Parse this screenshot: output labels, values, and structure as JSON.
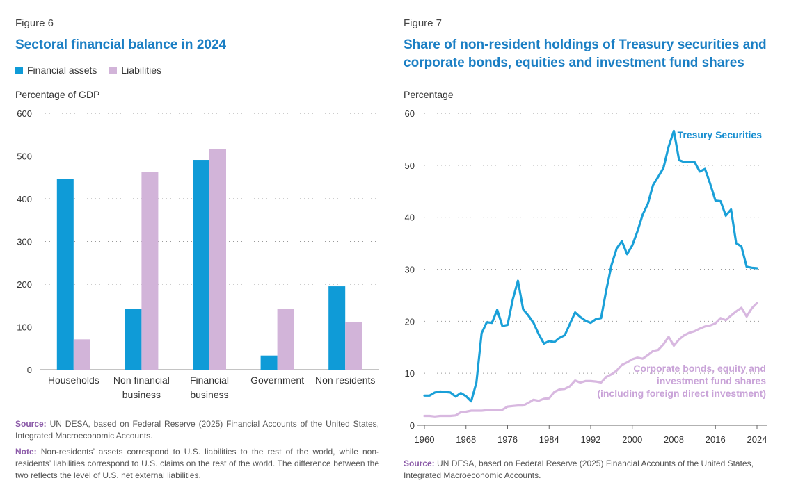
{
  "left": {
    "figure_label": "Figure 6",
    "title": "Sectoral financial balance in 2024",
    "unit_label": "Percentage of GDP",
    "source_label": "Source:",
    "source_text": "UN DESA, based on Federal Reserve (2025) Financial Accounts of the United States, Integrated Macroeconomic Accounts.",
    "note_label": "Note:",
    "note_text": "Non-residents’ assets correspond to U.S. liabilities to the rest of the world, while non-residents’ liabilities correspond to U.S. claims on the rest of the world. The difference between the two reflects the level of U.S. net external liabilities."
  },
  "right": {
    "figure_label": "Figure 7",
    "title_line1": "Share of non-resident holdings of Treasury securities and",
    "title_line2": "corporate bonds, equities and investment fund shares",
    "unit_label": "Percentage",
    "source_label": "Source:",
    "source_text": "UN DESA, based on Federal Reserve (2025) Financial Accounts of the United States, Integrated Macroeconomic Accounts."
  },
  "colors": {
    "assets": "#0f9bd7",
    "liabilities": "#d2b4d9",
    "treasury": "#1aa0d8",
    "corporate": "#d8b8e0",
    "treasury_label": "#1a8fd0",
    "corporate_label": "#c9a3d8"
  },
  "chart_data": [
    {
      "type": "bar",
      "title": "Sectoral financial balance in 2024",
      "ylabel": "Percentage of GDP",
      "ylim": [
        0,
        600
      ],
      "yticks": [
        "0",
        "100",
        "200",
        "300",
        "400",
        "500",
        "600"
      ],
      "categories": [
        [
          "Households"
        ],
        [
          "Non financial",
          "business"
        ],
        [
          "Financial",
          "business"
        ],
        [
          "Government"
        ],
        [
          "Non residents"
        ]
      ],
      "series": [
        {
          "name": "Financial assets",
          "values": [
            446,
            143,
            491,
            33,
            195
          ]
        },
        {
          "name": "Liabilities",
          "values": [
            71,
            463,
            516,
            143,
            111
          ]
        }
      ],
      "legend": "top-left"
    },
    {
      "type": "line",
      "title": "Share of non-resident holdings of Treasury securities and corporate bonds, equities and investment fund shares",
      "ylabel": "Percentage",
      "ylim": [
        0,
        60
      ],
      "xlim": [
        1960,
        2024
      ],
      "yticks": [
        "0",
        "10",
        "20",
        "30",
        "40",
        "50",
        "60"
      ],
      "xticks": [
        "1960",
        "1968",
        "1976",
        "1984",
        "1992",
        "2000",
        "2008",
        "2016",
        "2024"
      ],
      "x": [
        1960,
        1961,
        1962,
        1963,
        1964,
        1965,
        1966,
        1967,
        1968,
        1969,
        1970,
        1971,
        1972,
        1973,
        1974,
        1975,
        1976,
        1977,
        1978,
        1979,
        1980,
        1981,
        1982,
        1983,
        1984,
        1985,
        1986,
        1987,
        1988,
        1989,
        1990,
        1991,
        1992,
        1993,
        1994,
        1995,
        1996,
        1997,
        1998,
        1999,
        2000,
        2001,
        2002,
        2003,
        2004,
        2005,
        2006,
        2007,
        2008,
        2009,
        2010,
        2011,
        2012,
        2013,
        2014,
        2015,
        2016,
        2017,
        2018,
        2019,
        2020,
        2021,
        2022,
        2023,
        2024
      ],
      "series": [
        {
          "name": "Tresury Securities",
          "annotation": [
            "Tresury Securities"
          ],
          "values": [
            5.7,
            5.7,
            6.3,
            6.5,
            6.4,
            6.3,
            5.5,
            6.2,
            5.6,
            4.6,
            8.2,
            17.7,
            19.8,
            19.7,
            22.2,
            19.1,
            19.3,
            24.2,
            27.8,
            22.3,
            21.1,
            19.7,
            17.5,
            15.7,
            16.2,
            16.0,
            16.8,
            17.3,
            19.5,
            21.7,
            20.8,
            20.1,
            19.7,
            20.4,
            20.6,
            26.0,
            30.8,
            34.0,
            35.4,
            32.9,
            34.6,
            37.3,
            40.5,
            42.6,
            46.2,
            47.8,
            49.5,
            53.6,
            56.6,
            51.0,
            50.6,
            50.6,
            50.6,
            48.8,
            49.3,
            46.4,
            43.2,
            43.1,
            40.3,
            41.5,
            35.0,
            34.4,
            30.5,
            30.3,
            30.2
          ]
        },
        {
          "name": "Corporate bonds, equity and investment fund shares (including foreign direct investment)",
          "annotation": [
            "Corporate bonds, equity and",
            "investment fund shares",
            "(including foreign direct investment)"
          ],
          "values": [
            1.8,
            1.8,
            1.7,
            1.8,
            1.8,
            1.8,
            1.9,
            2.5,
            2.6,
            2.8,
            2.8,
            2.8,
            2.9,
            3.0,
            3.0,
            3.0,
            3.6,
            3.7,
            3.8,
            3.8,
            4.3,
            4.9,
            4.7,
            5.1,
            5.2,
            6.4,
            6.9,
            7.0,
            7.5,
            8.6,
            8.2,
            8.5,
            8.5,
            8.4,
            8.2,
            9.3,
            9.8,
            10.5,
            11.6,
            12.1,
            12.7,
            13.0,
            12.8,
            13.5,
            14.3,
            14.5,
            15.6,
            17.0,
            15.3,
            16.5,
            17.3,
            17.8,
            18.1,
            18.6,
            19.0,
            19.2,
            19.6,
            20.6,
            20.2,
            21.1,
            21.9,
            22.6,
            20.9,
            22.5,
            23.5
          ]
        }
      ]
    }
  ]
}
